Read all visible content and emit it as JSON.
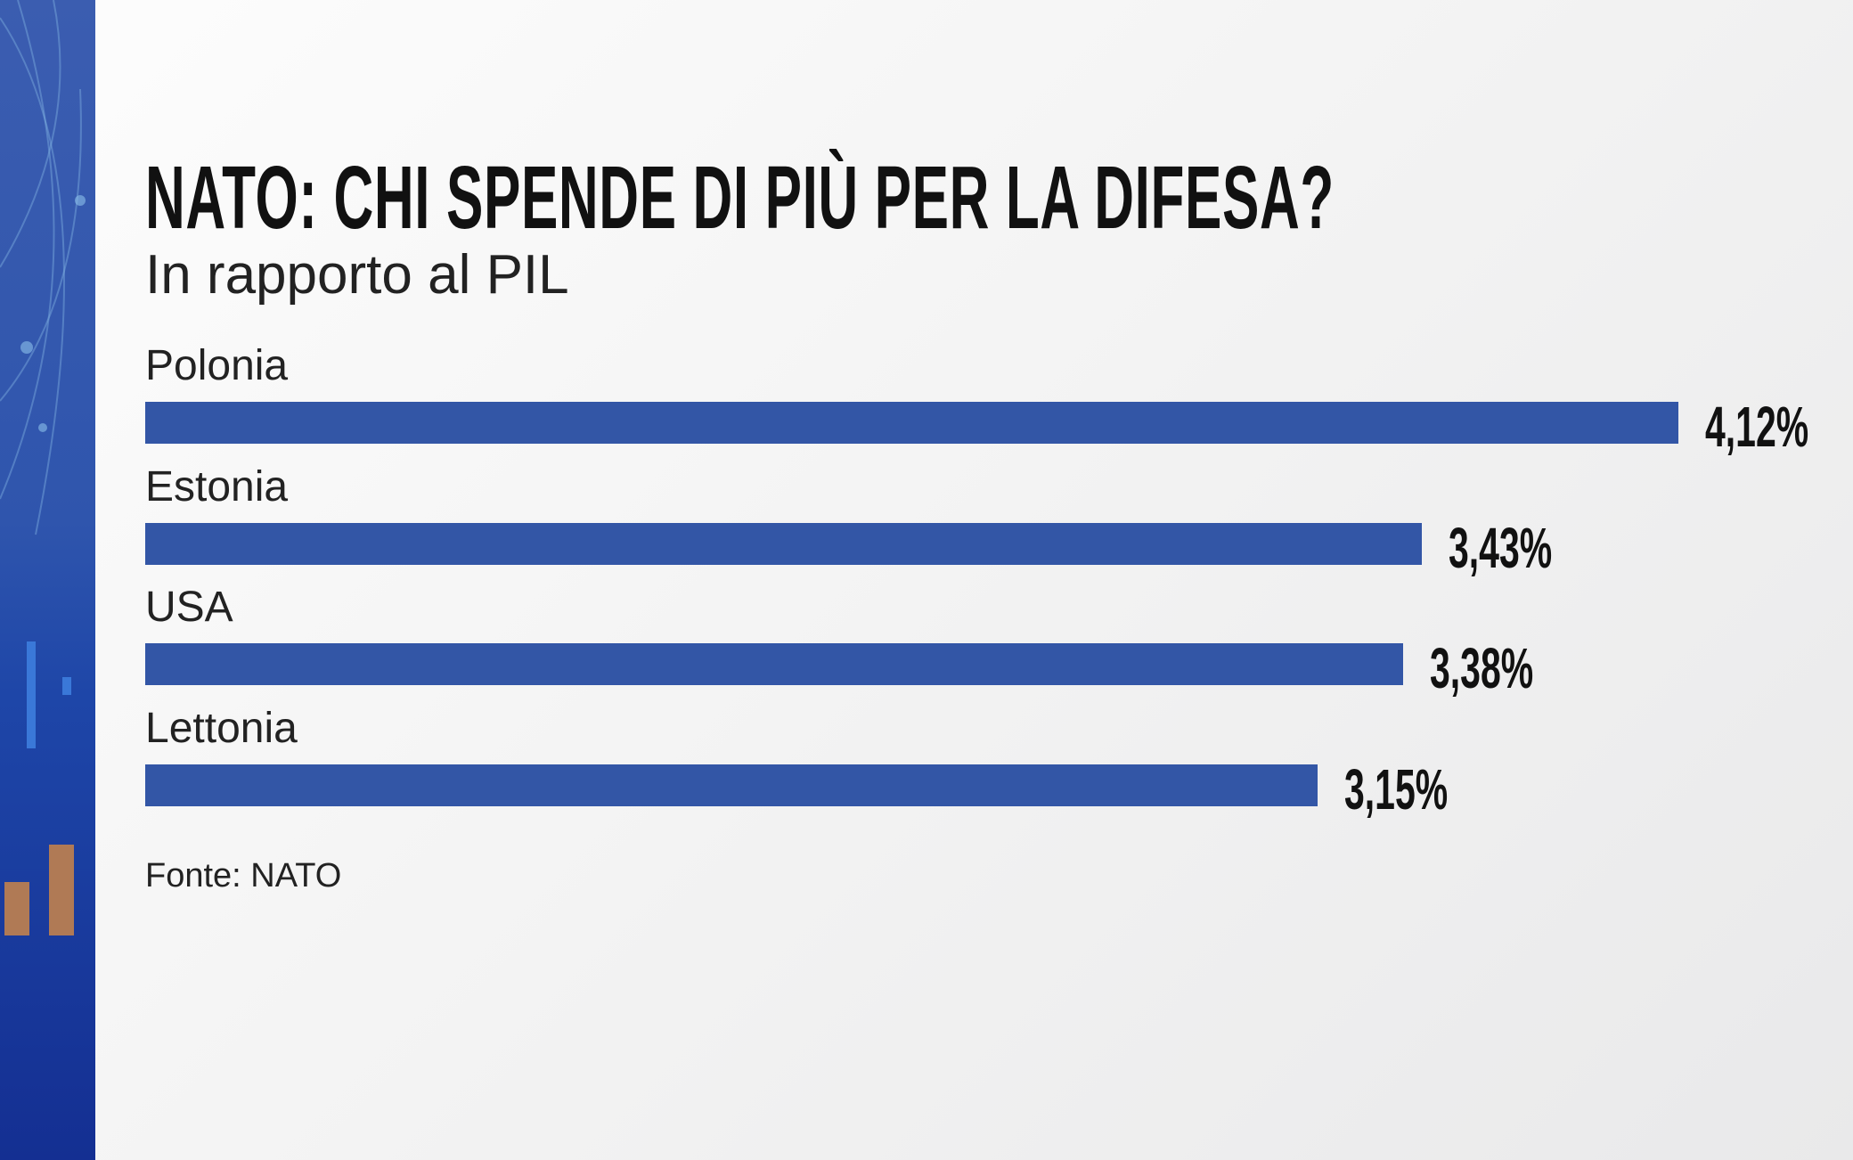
{
  "chart_data": {
    "type": "bar",
    "orientation": "horizontal",
    "title": "NATO: CHI SPENDE DI PIÙ PER LA DIFESA?",
    "subtitle": "In rapporto al PIL",
    "categories": [
      "Polonia",
      "Estonia",
      "USA",
      "Lettonia"
    ],
    "values": [
      4.12,
      3.43,
      3.38,
      3.15
    ],
    "value_labels": [
      "4,12%",
      "3,43%",
      "3,38%",
      "3,15%"
    ],
    "unit": "%",
    "source": "Fonte: NATO",
    "grid": false,
    "bar_color": "#3356a6",
    "accent_panel_color": "#2f55ad"
  }
}
